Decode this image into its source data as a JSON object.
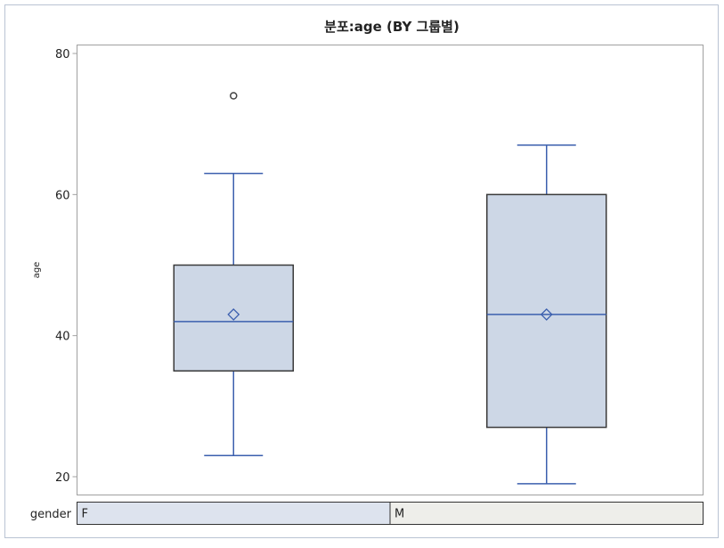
{
  "chart_data": {
    "type": "boxplot",
    "title": "분포:age (BY 그룹별)",
    "ylabel": "age",
    "xlabel": "",
    "ylim": [
      18,
      82
    ],
    "yticks": [
      20,
      40,
      60,
      80
    ],
    "group_label": "gender",
    "groups": [
      {
        "name": "F",
        "whisker_low": 23,
        "q1": 35,
        "median": 42,
        "q3": 50,
        "whisker_high": 63,
        "mean": 43,
        "outliers": [
          74
        ]
      },
      {
        "name": "M",
        "whisker_low": 19,
        "q1": 27,
        "median": 43,
        "q3": 60,
        "whisker_high": 67,
        "mean": 43,
        "outliers": []
      }
    ],
    "grid": false,
    "colors": {
      "box_fill": "#cdd7e6",
      "box_stroke": "#3a3a3a",
      "median_line": "#3b5fae",
      "whisker": "#3b5fae",
      "mean_marker": "#3b5fae",
      "outlier": "#444444",
      "group_cell_F": "#dde3ee",
      "group_cell_M": "#eeeeea",
      "frame_border": "#b9c3d3",
      "axis": "#a0a0a0"
    }
  }
}
